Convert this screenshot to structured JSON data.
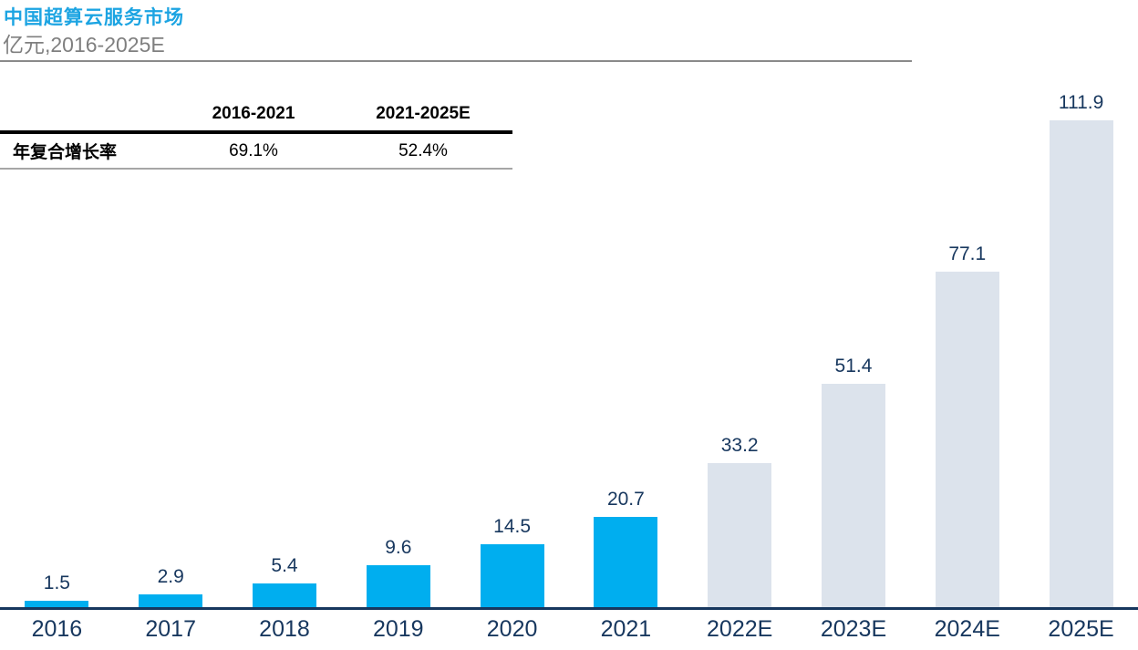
{
  "header": {
    "title": "中国超算云服务市场",
    "subtitle": "亿元,2016-2025E"
  },
  "cagr_table": {
    "row_label": "年复合增长率",
    "columns": [
      "2016-2021",
      "2021-2025E"
    ],
    "values": [
      "69.1%",
      "52.4%"
    ]
  },
  "chart_data": {
    "type": "bar",
    "title": "中国超算云服务市场",
    "unit_label": "亿元,2016-2025E",
    "categories": [
      "2016",
      "2017",
      "2018",
      "2019",
      "2020",
      "2021",
      "2022E",
      "2023E",
      "2024E",
      "2025E"
    ],
    "values": [
      1.5,
      2.9,
      5.4,
      9.6,
      14.5,
      20.7,
      33.2,
      51.4,
      77.1,
      111.9
    ],
    "estimate_start_index": 6,
    "cagr": {
      "2016-2021": "69.1%",
      "2021-2025E": "52.4%"
    },
    "ylim": [
      0,
      118
    ],
    "grid": false,
    "legend_position": "none",
    "colors": {
      "actual_bar": "#00AEEF",
      "estimate_bar": "#DCE3EC",
      "axis": "#17375E",
      "value_label": "#17375E",
      "tick_label": "#17375E",
      "title": "#1CA4E2",
      "subtitle": "#7F7F7F"
    }
  }
}
